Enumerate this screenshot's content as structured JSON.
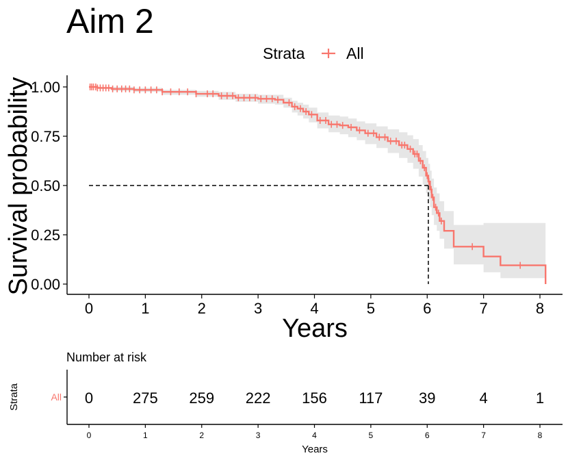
{
  "chart_data": {
    "type": "line",
    "title": "Aim 2",
    "xlabel": "Years",
    "ylabel": "Survival probability",
    "xlim": [
      0,
      8.1
    ],
    "ylim": [
      0,
      1
    ],
    "xticks": [
      0,
      1,
      2,
      3,
      4,
      5,
      6,
      7,
      8
    ],
    "yticks": [
      0,
      0.25,
      0.5,
      0.75,
      1
    ],
    "ytick_labels": [
      "0.00",
      "0.25",
      "0.50",
      "0.75",
      "1.00"
    ],
    "grid": false,
    "legend": {
      "title": "Strata",
      "position": "top",
      "entries": [
        "All"
      ]
    },
    "median_survival_time": 6.02,
    "series": [
      {
        "name": "All",
        "color": "#F8766D",
        "x": [
          0,
          0.15,
          0.4,
          0.8,
          1.3,
          1.9,
          2.3,
          2.6,
          3.0,
          3.3,
          3.45,
          3.6,
          3.7,
          3.8,
          3.9,
          4.05,
          4.25,
          4.45,
          4.6,
          4.75,
          4.9,
          5.1,
          5.3,
          5.5,
          5.65,
          5.75,
          5.85,
          5.92,
          5.98,
          6.02,
          6.05,
          6.08,
          6.12,
          6.17,
          6.22,
          6.3,
          6.47,
          6.6,
          7.0,
          7.3,
          8.08,
          8.1
        ],
        "y": [
          1.0,
          0.995,
          0.99,
          0.985,
          0.975,
          0.965,
          0.955,
          0.945,
          0.94,
          0.935,
          0.92,
          0.9,
          0.89,
          0.875,
          0.86,
          0.83,
          0.81,
          0.805,
          0.795,
          0.78,
          0.765,
          0.745,
          0.725,
          0.705,
          0.685,
          0.66,
          0.625,
          0.59,
          0.55,
          0.52,
          0.48,
          0.44,
          0.39,
          0.36,
          0.32,
          0.27,
          0.19,
          0.19,
          0.14,
          0.095,
          0.095,
          0.0
        ],
        "lower": [
          1.0,
          0.99,
          0.98,
          0.975,
          0.96,
          0.95,
          0.935,
          0.925,
          0.915,
          0.91,
          0.895,
          0.87,
          0.855,
          0.84,
          0.82,
          0.79,
          0.77,
          0.76,
          0.745,
          0.73,
          0.71,
          0.69,
          0.665,
          0.64,
          0.615,
          0.585,
          0.545,
          0.505,
          0.46,
          0.43,
          0.39,
          0.35,
          0.3,
          0.27,
          0.23,
          0.18,
          0.1,
          0.1,
          0.06,
          0.03,
          0.03,
          0.0
        ],
        "upper": [
          1.0,
          1.0,
          1.0,
          0.995,
          0.985,
          0.98,
          0.975,
          0.965,
          0.96,
          0.96,
          0.945,
          0.93,
          0.92,
          0.91,
          0.895,
          0.87,
          0.855,
          0.85,
          0.84,
          0.825,
          0.815,
          0.8,
          0.785,
          0.77,
          0.755,
          0.735,
          0.705,
          0.675,
          0.64,
          0.61,
          0.575,
          0.535,
          0.49,
          0.46,
          0.42,
          0.37,
          0.3,
          0.3,
          0.31,
          0.31,
          0.31,
          0.31
        ]
      }
    ],
    "censor_marks": [
      0.02,
      0.05,
      0.08,
      0.12,
      0.15,
      0.2,
      0.25,
      0.3,
      0.35,
      0.42,
      0.5,
      0.58,
      0.65,
      0.72,
      0.8,
      0.9,
      1.0,
      1.1,
      1.2,
      1.3,
      1.45,
      1.6,
      1.75,
      1.9,
      2.1,
      2.2,
      2.35,
      2.45,
      2.55,
      2.65,
      2.75,
      2.85,
      2.95,
      3.05,
      3.15,
      3.25,
      3.35,
      3.55,
      3.65,
      3.75,
      3.85,
      3.95,
      4.1,
      4.2,
      4.3,
      4.4,
      4.5,
      4.65,
      4.8,
      4.95,
      5.05,
      5.15,
      5.25,
      5.35,
      5.45,
      5.55,
      5.6,
      5.7,
      5.78,
      5.82,
      5.88,
      5.95,
      6.0,
      6.03,
      6.07,
      6.1,
      6.15,
      6.2,
      6.25,
      6.8,
      7.65
    ],
    "risk_table": {
      "title": "Number at risk",
      "ylabel": "Strata",
      "xlabel": "Years",
      "strata_label": "All",
      "times": [
        0,
        1,
        2,
        3,
        4,
        5,
        6,
        7,
        8
      ],
      "counts": [
        "0",
        "275",
        "259",
        "222",
        "156",
        "117",
        "39",
        "4",
        "1"
      ]
    }
  }
}
